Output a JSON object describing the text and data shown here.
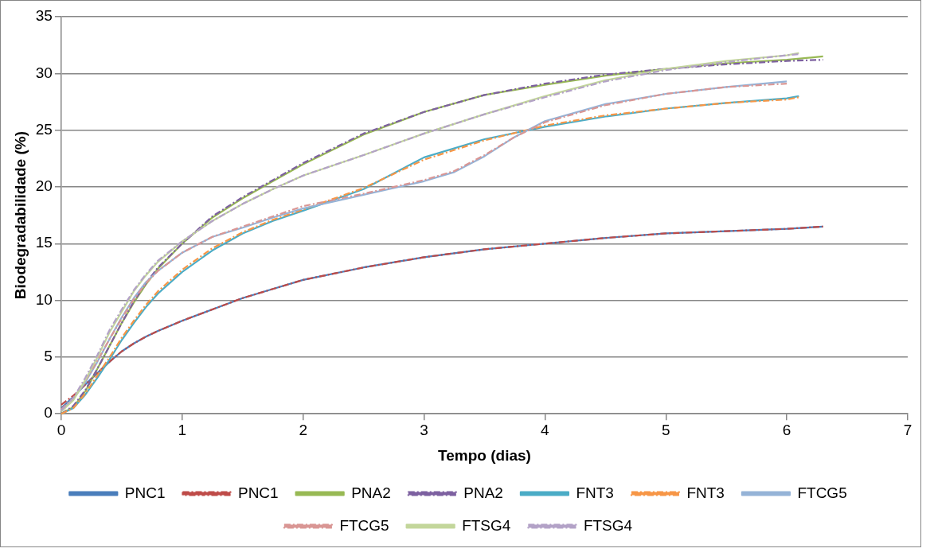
{
  "chart_data": {
    "type": "line",
    "xlabel": "Tempo (dias)",
    "ylabel": "Biodegradabilidade (%)",
    "xlim": [
      0,
      7
    ],
    "xticks": [
      0,
      1,
      2,
      3,
      4,
      5,
      6,
      7
    ],
    "ylim": [
      0,
      35
    ],
    "yticks": [
      0,
      5,
      10,
      15,
      20,
      25,
      30,
      35
    ],
    "grid": "y",
    "legend": "bottom",
    "marker": "none",
    "series": [
      {
        "name": "PNC1",
        "color": "#4a7ebb",
        "line_style": "solid",
        "x": [
          0,
          0.1,
          0.2,
          0.3,
          0.4,
          0.5,
          0.6,
          0.7,
          0.8,
          1,
          1.25,
          1.5,
          1.75,
          2,
          2.5,
          3,
          3.5,
          4,
          4.5,
          5,
          5.5,
          6,
          6.3
        ],
        "values": [
          0.5,
          1.5,
          2.6,
          3.6,
          4.6,
          5.5,
          6.2,
          6.8,
          7.3,
          8.2,
          9.2,
          10.2,
          11,
          11.8,
          12.9,
          13.8,
          14.5,
          15,
          15.5,
          15.9,
          16.1,
          16.3,
          16.5
        ]
      },
      {
        "name": "PNC1",
        "color": "#be4b48",
        "line_style": "dashed",
        "x": [
          0,
          0.1,
          0.2,
          0.3,
          0.4,
          0.5,
          0.6,
          0.7,
          0.8,
          1,
          1.25,
          1.5,
          1.75,
          2,
          2.5,
          3,
          3.5,
          4,
          4.5,
          5,
          5.5,
          6,
          6.3
        ],
        "values": [
          0.8,
          1.6,
          2.6,
          3.6,
          4.6,
          5.5,
          6.2,
          6.8,
          7.3,
          8.2,
          9.2,
          10.2,
          11,
          11.8,
          12.9,
          13.8,
          14.5,
          15,
          15.5,
          15.9,
          16.1,
          16.3,
          16.5
        ]
      },
      {
        "name": "PNA2",
        "color": "#98b954",
        "line_style": "solid",
        "x": [
          0,
          0.1,
          0.2,
          0.3,
          0.4,
          0.5,
          0.6,
          0.7,
          0.8,
          1,
          1.25,
          1.5,
          1.75,
          2,
          2.5,
          3,
          3.5,
          4,
          4.5,
          5,
          5.5,
          6,
          6.3
        ],
        "values": [
          0,
          0.6,
          2,
          4,
          6,
          8,
          9.8,
          11.4,
          12.8,
          15,
          17.3,
          19,
          20.5,
          22,
          24.6,
          26.6,
          28.1,
          29,
          29.8,
          30.4,
          30.9,
          31.2,
          31.5
        ]
      },
      {
        "name": "PNA2",
        "color": "#7d60a0",
        "line_style": "dashed",
        "x": [
          0,
          0.1,
          0.2,
          0.3,
          0.4,
          0.5,
          0.6,
          0.7,
          0.8,
          1,
          1.25,
          1.5,
          1.75,
          2,
          2.5,
          3,
          3.5,
          4,
          4.5,
          5,
          5.5,
          6,
          6.3
        ],
        "values": [
          0,
          0.7,
          2.1,
          4,
          6,
          8,
          9.9,
          11.5,
          12.9,
          15,
          17.4,
          19.1,
          20.6,
          22.1,
          24.7,
          26.6,
          28.1,
          29.1,
          29.9,
          30.4,
          30.8,
          31.1,
          31.2
        ]
      },
      {
        "name": "FNT3",
        "color": "#4bacc6",
        "line_style": "solid",
        "x": [
          0,
          0.1,
          0.2,
          0.3,
          0.4,
          0.5,
          0.6,
          0.7,
          0.8,
          1,
          1.25,
          1.5,
          1.75,
          2,
          2.5,
          3,
          3.5,
          4,
          4.5,
          5,
          5.5,
          6,
          6.1
        ],
        "values": [
          0,
          0.5,
          1.7,
          3.2,
          4.8,
          6.5,
          8,
          9.4,
          10.6,
          12.5,
          14.4,
          15.9,
          17,
          17.9,
          19.8,
          22.6,
          24.2,
          25.3,
          26.2,
          26.9,
          27.4,
          27.8,
          28
        ]
      },
      {
        "name": "FNT3",
        "color": "#f79646",
        "line_style": "dashed",
        "x": [
          0,
          0.1,
          0.2,
          0.3,
          0.4,
          0.5,
          0.6,
          0.7,
          0.8,
          1,
          1.25,
          1.5,
          1.75,
          2,
          2.5,
          3,
          3.5,
          4,
          4.5,
          5,
          5.5,
          6,
          6.1
        ],
        "values": [
          0,
          0.5,
          1.8,
          3.4,
          5,
          6.7,
          8.2,
          9.6,
          10.8,
          12.7,
          14.6,
          16,
          17.1,
          18,
          19.9,
          22.4,
          24.1,
          25.4,
          26.3,
          26.9,
          27.4,
          27.7,
          27.9
        ]
      },
      {
        "name": "FTCG5",
        "color": "#95b3d7",
        "line_style": "solid",
        "x": [
          0,
          0.1,
          0.2,
          0.3,
          0.4,
          0.5,
          0.6,
          0.7,
          0.8,
          1,
          1.25,
          1.5,
          1.75,
          2,
          2.5,
          3,
          3.25,
          3.5,
          3.75,
          4,
          4.5,
          5,
          5.5,
          6
        ],
        "values": [
          0.3,
          1.3,
          2.8,
          4.6,
          6.6,
          8.5,
          10.2,
          11.6,
          12.6,
          14.2,
          15.6,
          16.4,
          17.3,
          18.1,
          19.3,
          20.5,
          21.3,
          22.7,
          24.4,
          25.8,
          27.3,
          28.2,
          28.8,
          29.3
        ]
      },
      {
        "name": "FTCG5",
        "color": "#d99694",
        "line_style": "dashed",
        "x": [
          0,
          0.1,
          0.2,
          0.3,
          0.4,
          0.5,
          0.6,
          0.7,
          0.8,
          1,
          1.25,
          1.5,
          1.75,
          2,
          2.5,
          3,
          3.25,
          3.5,
          3.75,
          4,
          4.5,
          5,
          5.5,
          6
        ],
        "values": [
          0.4,
          1.4,
          2.9,
          4.7,
          6.6,
          8.4,
          10.1,
          11.5,
          12.6,
          14.2,
          15.6,
          16.5,
          17.4,
          18.3,
          19.4,
          20.6,
          21.4,
          22.8,
          24.4,
          25.7,
          27.2,
          28.2,
          28.8,
          29.1
        ]
      },
      {
        "name": "FTSG4",
        "color": "#c3d69b",
        "line_style": "solid",
        "x": [
          0,
          0.1,
          0.2,
          0.3,
          0.4,
          0.5,
          0.6,
          0.7,
          0.8,
          1,
          1.25,
          1.5,
          1.75,
          2,
          2.5,
          3,
          3.5,
          4,
          4.5,
          5,
          5.5,
          6,
          6.1
        ],
        "values": [
          0.2,
          1.2,
          3,
          5,
          7.2,
          9,
          10.8,
          12.2,
          13.4,
          15.2,
          17,
          18.5,
          19.8,
          21,
          22.8,
          24.7,
          26.4,
          28,
          29.4,
          30.4,
          31.1,
          31.6,
          31.8
        ]
      },
      {
        "name": "FTSG4",
        "color": "#b3a2c7",
        "line_style": "dashed",
        "x": [
          0,
          0.1,
          0.2,
          0.3,
          0.4,
          0.5,
          0.6,
          0.7,
          0.8,
          1,
          1.25,
          1.5,
          1.75,
          2,
          2.5,
          3,
          3.5,
          4,
          4.5,
          5,
          5.5,
          6,
          6.1
        ],
        "values": [
          0.3,
          1.4,
          3.2,
          5.2,
          7.4,
          9.2,
          10.9,
          12.3,
          13.5,
          15.2,
          17,
          18.5,
          19.8,
          21,
          22.8,
          24.7,
          26.4,
          27.9,
          29.3,
          30.3,
          31,
          31.6,
          31.7
        ]
      }
    ]
  }
}
